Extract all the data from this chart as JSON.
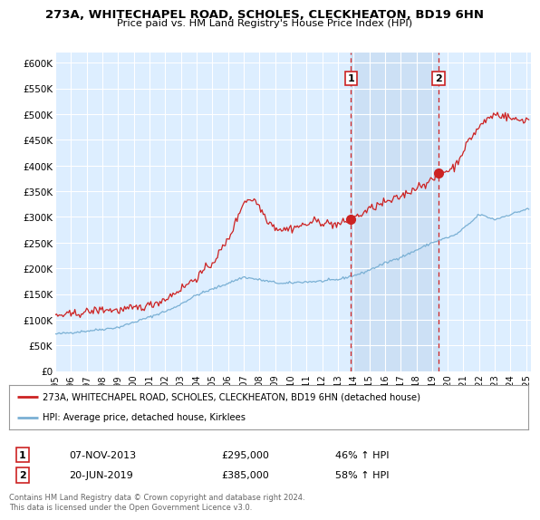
{
  "title_line1": "273A, WHITECHAPEL ROAD, SCHOLES, CLECKHEATON, BD19 6HN",
  "title_line2": "Price paid vs. HM Land Registry's House Price Index (HPI)",
  "ylim": [
    0,
    620000
  ],
  "yticks": [
    0,
    50000,
    100000,
    150000,
    200000,
    250000,
    300000,
    350000,
    400000,
    450000,
    500000,
    550000,
    600000
  ],
  "ytick_labels": [
    "£0",
    "£50K",
    "£100K",
    "£150K",
    "£200K",
    "£250K",
    "£300K",
    "£350K",
    "£400K",
    "£450K",
    "£500K",
    "£550K",
    "£600K"
  ],
  "background_color": "#ffffff",
  "plot_bg_color": "#ddeeff",
  "grid_color": "#ffffff",
  "hpi_color": "#7ab0d4",
  "price_color": "#cc2222",
  "vline_color": "#cc2222",
  "shade_color": "#cce0f5",
  "sale1_date": "07-NOV-2013",
  "sale1_price": "£295,000",
  "sale1_hpi": "46% ↑ HPI",
  "sale2_date": "20-JUN-2019",
  "sale2_price": "£385,000",
  "sale2_hpi": "58% ↑ HPI",
  "legend_line1": "273A, WHITECHAPEL ROAD, SCHOLES, CLECKHEATON, BD19 6HN (detached house)",
  "legend_line2": "HPI: Average price, detached house, Kirklees",
  "footer": "Contains HM Land Registry data © Crown copyright and database right 2024.\nThis data is licensed under the Open Government Licence v3.0.",
  "v1": 2013.833,
  "v2": 2019.417,
  "sale1_y": 295000,
  "sale2_y": 385000,
  "xlim_left": 1995.0,
  "xlim_right": 2025.3
}
